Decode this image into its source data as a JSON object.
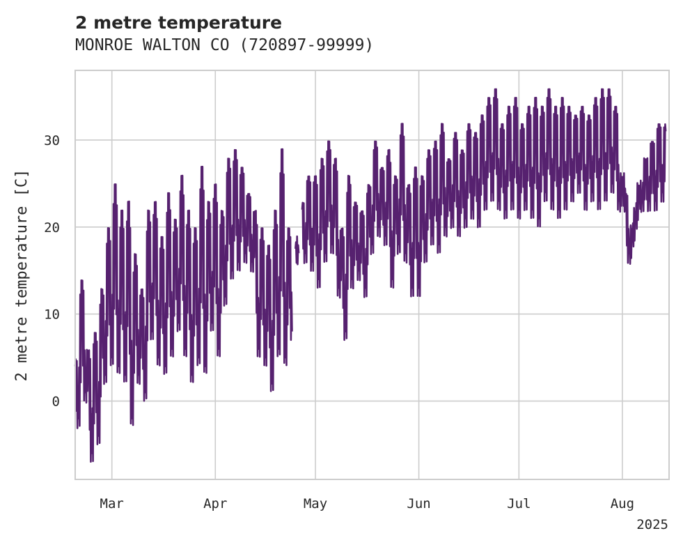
{
  "chart_data": {
    "type": "line",
    "title": "2 metre temperature",
    "subtitle": "MONROE WALTON CO (720897-99999)",
    "ylabel": "2 metre temperature [C]",
    "xlabel": "",
    "year_label": "2025",
    "xlim": [
      "2025-02-18",
      "2025-08-15"
    ],
    "ylim": [
      -9,
      38
    ],
    "yticks": [
      0,
      10,
      20,
      30
    ],
    "xticks": [
      {
        "date": "2025-03-01",
        "label": "Mar"
      },
      {
        "date": "2025-04-01",
        "label": "Apr"
      },
      {
        "date": "2025-05-01",
        "label": "May"
      },
      {
        "date": "2025-06-01",
        "label": "Jun"
      },
      {
        "date": "2025-07-01",
        "label": "Jul"
      },
      {
        "date": "2025-08-01",
        "label": "Aug"
      }
    ],
    "grid": true,
    "line_color": "#56216f",
    "series": [
      {
        "segment": 1,
        "points": [
          [
            "2025-02-18",
            4
          ],
          [
            "2025-02-19",
            -2
          ],
          [
            "2025-02-20",
            13
          ],
          [
            "2025-02-21",
            1
          ],
          [
            "2025-02-22",
            5
          ],
          [
            "2025-02-23",
            -6
          ],
          [
            "2025-02-24",
            7
          ],
          [
            "2025-02-25",
            -4
          ],
          [
            "2025-02-26",
            12
          ],
          [
            "2025-02-27",
            3
          ],
          [
            "2025-02-28",
            19
          ],
          [
            "2025-03-01",
            5
          ],
          [
            "2025-03-02",
            24
          ],
          [
            "2025-03-03",
            4
          ],
          [
            "2025-03-04",
            21
          ],
          [
            "2025-03-05",
            3
          ],
          [
            "2025-03-06",
            22
          ],
          [
            "2025-03-07",
            -2
          ],
          [
            "2025-03-08",
            16
          ],
          [
            "2025-03-09",
            3
          ],
          [
            "2025-03-10",
            12
          ],
          [
            "2025-03-11",
            1
          ],
          [
            "2025-03-12",
            21
          ],
          [
            "2025-03-13",
            8
          ],
          [
            "2025-03-14",
            22
          ],
          [
            "2025-03-15",
            5
          ],
          [
            "2025-03-16",
            18
          ],
          [
            "2025-03-17",
            4
          ],
          [
            "2025-03-18",
            23
          ],
          [
            "2025-03-19",
            6
          ],
          [
            "2025-03-20",
            20
          ],
          [
            "2025-03-21",
            9
          ],
          [
            "2025-03-22",
            25
          ],
          [
            "2025-03-23",
            6
          ],
          [
            "2025-03-24",
            21
          ],
          [
            "2025-03-25",
            3
          ],
          [
            "2025-03-26",
            19
          ],
          [
            "2025-03-27",
            5
          ],
          [
            "2025-03-28",
            26
          ],
          [
            "2025-03-29",
            4
          ],
          [
            "2025-03-30",
            22
          ],
          [
            "2025-03-31",
            9
          ],
          [
            "2025-04-01",
            24
          ],
          [
            "2025-04-02",
            6
          ],
          [
            "2025-04-03",
            21
          ],
          [
            "2025-04-04",
            12
          ],
          [
            "2025-04-05",
            27
          ],
          [
            "2025-04-06",
            15
          ],
          [
            "2025-04-07",
            28
          ],
          [
            "2025-04-08",
            16
          ],
          [
            "2025-04-09",
            26
          ],
          [
            "2025-04-10",
            17
          ],
          [
            "2025-04-11",
            23
          ],
          [
            "2025-04-12",
            16
          ],
          [
            "2025-04-13",
            21
          ],
          [
            "2025-04-14",
            6
          ],
          [
            "2025-04-15",
            19
          ],
          [
            "2025-04-16",
            5
          ],
          [
            "2025-04-17",
            17
          ],
          [
            "2025-04-18",
            2
          ],
          [
            "2025-04-19",
            21
          ],
          [
            "2025-04-20",
            6
          ],
          [
            "2025-04-21",
            28
          ],
          [
            "2025-04-22",
            5
          ],
          [
            "2025-04-23",
            19
          ],
          [
            "2025-04-24",
            8
          ]
        ]
      },
      {
        "segment": 2,
        "points": [
          [
            "2025-04-25",
            17.5
          ],
          [
            "2025-04-26",
            17
          ]
        ]
      },
      {
        "segment": 3,
        "points": [
          [
            "2025-04-27",
            22
          ],
          [
            "2025-04-28",
            17
          ],
          [
            "2025-04-29",
            25
          ],
          [
            "2025-04-30",
            16
          ],
          [
            "2025-05-01",
            25
          ],
          [
            "2025-05-02",
            14
          ],
          [
            "2025-05-03",
            27
          ],
          [
            "2025-05-04",
            17
          ],
          [
            "2025-05-05",
            29
          ],
          [
            "2025-05-06",
            18
          ],
          [
            "2025-05-07",
            27
          ],
          [
            "2025-05-08",
            13
          ],
          [
            "2025-05-09",
            19
          ],
          [
            "2025-05-10",
            8
          ],
          [
            "2025-05-11",
            25
          ],
          [
            "2025-05-12",
            14
          ],
          [
            "2025-05-13",
            22
          ],
          [
            "2025-05-14",
            15
          ],
          [
            "2025-05-15",
            21
          ],
          [
            "2025-05-16",
            13
          ],
          [
            "2025-05-17",
            24
          ],
          [
            "2025-05-18",
            18
          ],
          [
            "2025-05-19",
            29
          ],
          [
            "2025-05-20",
            20
          ],
          [
            "2025-05-21",
            26
          ],
          [
            "2025-05-22",
            19
          ],
          [
            "2025-05-23",
            28
          ],
          [
            "2025-05-24",
            14
          ],
          [
            "2025-05-25",
            25
          ],
          [
            "2025-05-26",
            18
          ],
          [
            "2025-05-27",
            31
          ],
          [
            "2025-05-28",
            17
          ],
          [
            "2025-05-29",
            24
          ],
          [
            "2025-05-30",
            13
          ],
          [
            "2025-05-31",
            26
          ],
          [
            "2025-06-01",
            13
          ],
          [
            "2025-06-02",
            25
          ],
          [
            "2025-06-03",
            17
          ],
          [
            "2025-06-04",
            28
          ],
          [
            "2025-06-05",
            19
          ],
          [
            "2025-06-06",
            29
          ],
          [
            "2025-06-07",
            18
          ],
          [
            "2025-06-08",
            31
          ],
          [
            "2025-06-09",
            20
          ],
          [
            "2025-06-10",
            27
          ],
          [
            "2025-06-11",
            21
          ],
          [
            "2025-06-12",
            30
          ],
          [
            "2025-06-13",
            20
          ],
          [
            "2025-06-14",
            28
          ],
          [
            "2025-06-15",
            21
          ],
          [
            "2025-06-16",
            31
          ],
          [
            "2025-06-17",
            22
          ],
          [
            "2025-06-18",
            30
          ],
          [
            "2025-06-19",
            21
          ],
          [
            "2025-06-20",
            32
          ],
          [
            "2025-06-21",
            23
          ],
          [
            "2025-06-22",
            34
          ],
          [
            "2025-06-23",
            24
          ],
          [
            "2025-06-24",
            35
          ],
          [
            "2025-06-25",
            23
          ],
          [
            "2025-06-26",
            31
          ],
          [
            "2025-06-27",
            22
          ],
          [
            "2025-06-28",
            33
          ],
          [
            "2025-06-29",
            23
          ],
          [
            "2025-06-30",
            34
          ],
          [
            "2025-07-01",
            22
          ],
          [
            "2025-07-02",
            31
          ],
          [
            "2025-07-03",
            23
          ],
          [
            "2025-07-04",
            33
          ],
          [
            "2025-07-05",
            22
          ],
          [
            "2025-07-06",
            34
          ],
          [
            "2025-07-07",
            21
          ],
          [
            "2025-07-08",
            33
          ],
          [
            "2025-07-09",
            24
          ],
          [
            "2025-07-10",
            35
          ],
          [
            "2025-07-11",
            23
          ],
          [
            "2025-07-12",
            33
          ],
          [
            "2025-07-13",
            22
          ],
          [
            "2025-07-14",
            34
          ],
          [
            "2025-07-15",
            23
          ],
          [
            "2025-07-16",
            33
          ],
          [
            "2025-07-17",
            24
          ],
          [
            "2025-07-18",
            32
          ],
          [
            "2025-07-19",
            25
          ],
          [
            "2025-07-20",
            33
          ],
          [
            "2025-07-21",
            23
          ],
          [
            "2025-07-22",
            32
          ],
          [
            "2025-07-23",
            24
          ],
          [
            "2025-07-24",
            34
          ],
          [
            "2025-07-25",
            23
          ],
          [
            "2025-07-26",
            35
          ],
          [
            "2025-07-27",
            24
          ],
          [
            "2025-07-28",
            35
          ],
          [
            "2025-07-29",
            25
          ],
          [
            "2025-07-30",
            33
          ],
          [
            "2025-07-31",
            23
          ],
          [
            "2025-08-01",
            25
          ],
          [
            "2025-08-02",
            23
          ],
          [
            "2025-08-03",
            17
          ],
          [
            "2025-08-04",
            19
          ],
          [
            "2025-08-05",
            21
          ],
          [
            "2025-08-06",
            24
          ],
          [
            "2025-08-07",
            23
          ],
          [
            "2025-08-08",
            27
          ],
          [
            "2025-08-09",
            23
          ],
          [
            "2025-08-10",
            29
          ],
          [
            "2025-08-11",
            23
          ],
          [
            "2025-08-12",
            31
          ],
          [
            "2025-08-13",
            24
          ],
          [
            "2025-08-14",
            31
          ]
        ]
      }
    ]
  }
}
